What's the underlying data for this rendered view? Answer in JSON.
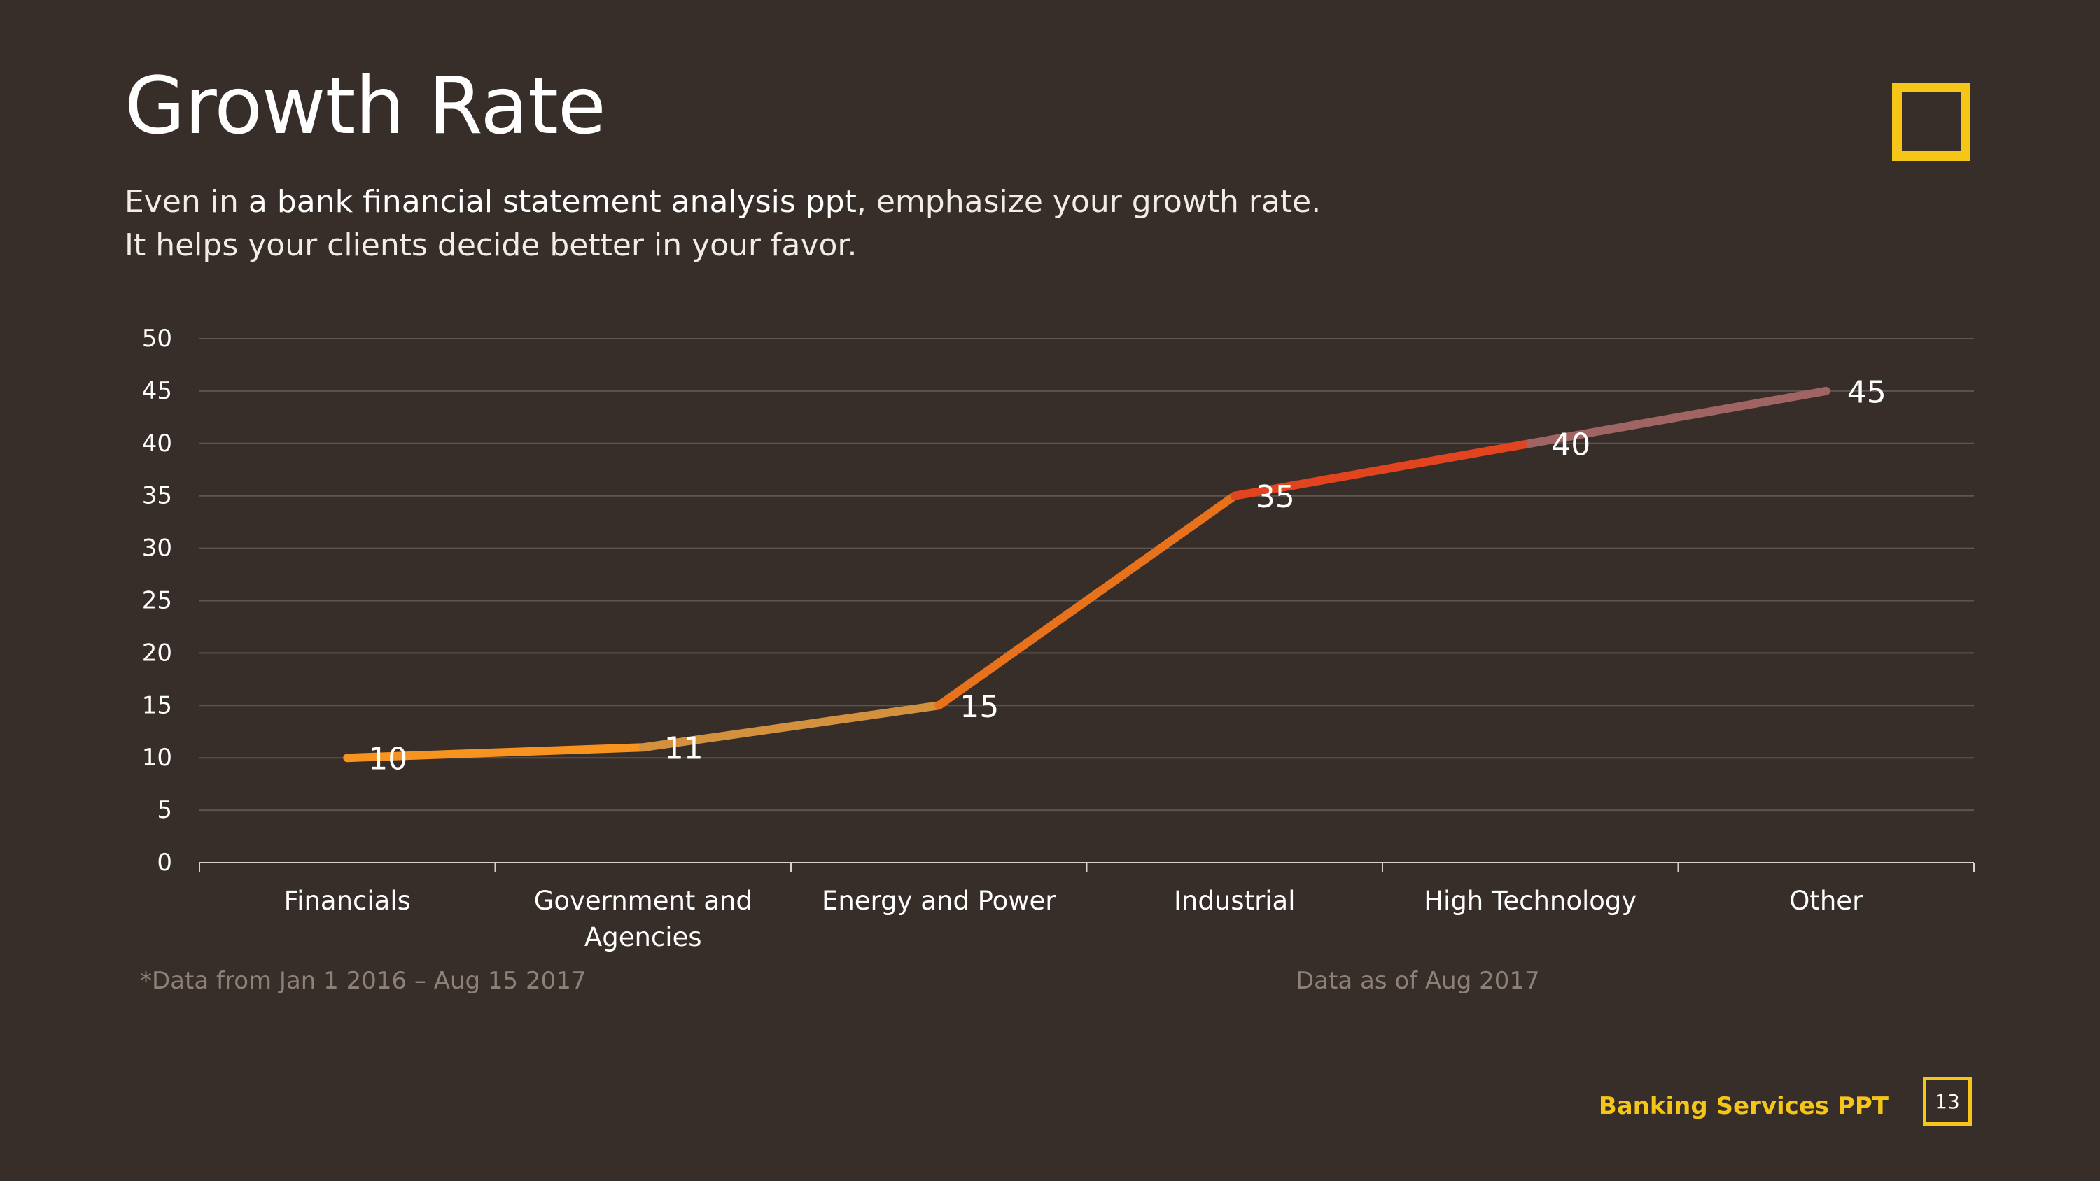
{
  "slide": {
    "title": "Growth Rate",
    "subtitle_part1": "Even in ",
    "subtitle_bold": "a bank financial statement analysis ppt",
    "subtitle_part2": ", emphasize your growth rate.",
    "subtitle_line2": "It helps your clients decide better in your favor.",
    "footnote_left": "*Data from Jan 1 2016 – Aug 15 2017",
    "footnote_right": "Data as of Aug 2017",
    "brand": "Banking Services PPT",
    "page_number": "13",
    "accent_color": "#f5c518",
    "background_color": "#372e29"
  },
  "chart_data": {
    "type": "line",
    "categories": [
      "Financials",
      "Government and\nAgencies",
      "Energy and Power",
      "Industrial",
      "High Technology",
      "Other"
    ],
    "values": [
      10,
      11,
      15,
      35,
      40,
      45
    ],
    "data_labels": [
      "10",
      "11",
      "15",
      "35",
      "40",
      "45"
    ],
    "segment_colors": [
      "#f7931e",
      "#d4913d",
      "#e8721c",
      "#e2441f",
      "#a06462"
    ],
    "ylim": [
      0,
      50
    ],
    "yticks": [
      0,
      5,
      10,
      15,
      20,
      25,
      30,
      35,
      40,
      45,
      50
    ],
    "grid": true,
    "legend": false
  }
}
